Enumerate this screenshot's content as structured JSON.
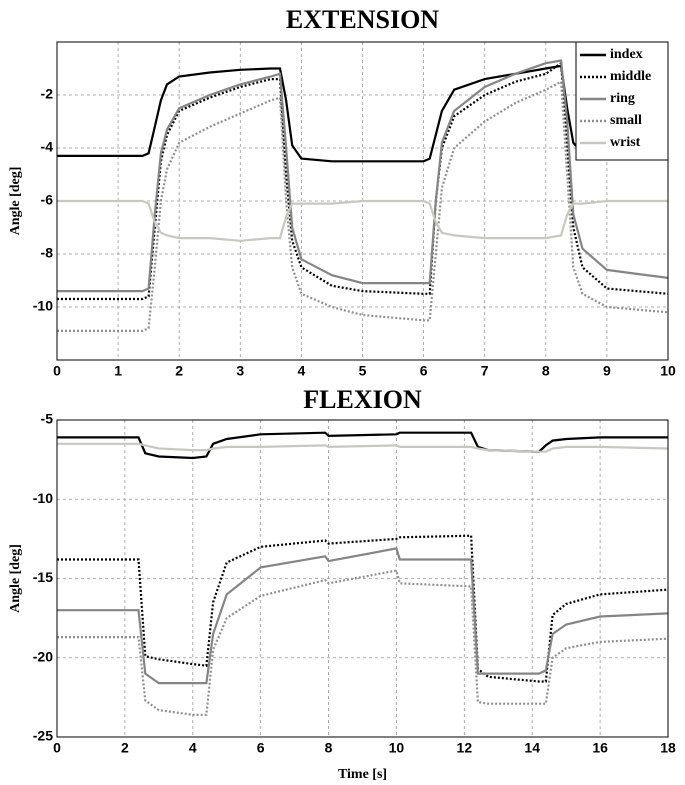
{
  "chart_data": [
    {
      "type": "line",
      "title": "EXTENSION",
      "ylabel": "Angle [deg]",
      "x": [
        0,
        1.4,
        1.5,
        1.6,
        1.7,
        1.8,
        2,
        2.5,
        3,
        3.5,
        3.65,
        3.75,
        3.85,
        4,
        4.5,
        5,
        6,
        6.1,
        6.2,
        6.3,
        6.5,
        7,
        7.5,
        8,
        8.25,
        8.35,
        8.45,
        8.6,
        9,
        10
      ],
      "series": [
        {
          "name": "index",
          "color": "#000000",
          "dash": "solid",
          "values": [
            -4.3,
            -4.3,
            -4.2,
            -3.2,
            -2.2,
            -1.6,
            -1.3,
            -1.15,
            -1.05,
            -1.0,
            -1.0,
            -2.2,
            -3.9,
            -4.4,
            -4.5,
            -4.5,
            -4.5,
            -4.4,
            -3.5,
            -2.6,
            -1.8,
            -1.4,
            -1.2,
            -1.0,
            -0.9,
            -2.5,
            -3.8,
            -4.2,
            -4.2,
            -4.2
          ]
        },
        {
          "name": "middle",
          "color": "#000000",
          "dash": "dotted",
          "values": [
            -9.7,
            -9.7,
            -9.6,
            -7,
            -4.5,
            -3.5,
            -2.6,
            -2.1,
            -1.7,
            -1.4,
            -1.4,
            -5,
            -7.5,
            -8.5,
            -9.2,
            -9.4,
            -9.5,
            -9.5,
            -6,
            -4,
            -2.8,
            -2.0,
            -1.5,
            -1.2,
            -0.8,
            -4,
            -7,
            -8.5,
            -9.3,
            -9.5
          ]
        },
        {
          "name": "ring",
          "color": "#858585",
          "dash": "solid",
          "values": [
            -9.4,
            -9.4,
            -9.3,
            -6.5,
            -4.2,
            -3.3,
            -2.5,
            -2,
            -1.6,
            -1.3,
            -1.2,
            -4,
            -7,
            -8.2,
            -8.8,
            -9.1,
            -9.1,
            -9.1,
            -6,
            -3.8,
            -2.6,
            -1.7,
            -1.2,
            -0.8,
            -0.7,
            -3,
            -6.5,
            -7.8,
            -8.6,
            -8.9
          ]
        },
        {
          "name": "small",
          "color": "#8f8f8f",
          "dash": "dotted",
          "values": [
            -10.9,
            -10.9,
            -10.8,
            -8.5,
            -6,
            -4.8,
            -3.8,
            -3.2,
            -2.7,
            -2.2,
            -2.1,
            -6,
            -8.5,
            -9.5,
            -10,
            -10.3,
            -10.5,
            -10.5,
            -8,
            -5.5,
            -4,
            -3,
            -2.3,
            -1.8,
            -1.5,
            -5,
            -8.5,
            -9.5,
            -10,
            -10.2
          ]
        },
        {
          "name": "wrist",
          "color": "#c8c8c0",
          "dash": "solid",
          "values": [
            -6,
            -6,
            -6.1,
            -6.8,
            -7.2,
            -7.3,
            -7.4,
            -7.4,
            -7.5,
            -7.4,
            -7.4,
            -6.6,
            -6.1,
            -6.1,
            -6.1,
            -6,
            -6,
            -6.1,
            -6.8,
            -7.2,
            -7.3,
            -7.4,
            -7.4,
            -7.4,
            -7.3,
            -6.5,
            -6.1,
            -6.1,
            -6,
            -6
          ]
        }
      ],
      "xlim": [
        0,
        10
      ],
      "xticks": [
        0,
        1,
        2,
        3,
        4,
        5,
        6,
        7,
        8,
        9,
        10
      ],
      "ylim": [
        -12,
        0
      ],
      "yticks": [
        -10,
        -8,
        -6,
        -4,
        -2
      ],
      "grid": true,
      "legend": "upper right"
    },
    {
      "type": "line",
      "title": "FLEXION",
      "ylabel": "Angle [deg]",
      "xlabel": "Time [s]",
      "x": [
        0,
        2.4,
        2.6,
        3,
        4,
        4.4,
        4.6,
        5,
        6,
        7.9,
        8,
        10,
        10.1,
        12.2,
        12.4,
        12.7,
        14.2,
        14.4,
        14.6,
        15,
        16,
        18
      ],
      "series": [
        {
          "name": "index",
          "color": "#000000",
          "dash": "solid",
          "values": [
            -6.1,
            -6.1,
            -7.1,
            -7.3,
            -7.4,
            -7.3,
            -6.5,
            -6.2,
            -5.9,
            -5.8,
            -6,
            -5.9,
            -5.8,
            -5.8,
            -6.7,
            -6.9,
            -7,
            -6.6,
            -6.3,
            -6.2,
            -6.1,
            -6.1
          ]
        },
        {
          "name": "middle",
          "color": "#000000",
          "dash": "dotted",
          "values": [
            -13.8,
            -13.8,
            -19.9,
            -20.1,
            -20.4,
            -20.5,
            -16.5,
            -14,
            -13,
            -12.6,
            -12.8,
            -12.5,
            -12.4,
            -12.3,
            -20.7,
            -21.2,
            -21.5,
            -21.5,
            -17.3,
            -16.6,
            -16,
            -15.7
          ]
        },
        {
          "name": "ring",
          "color": "#858585",
          "dash": "solid",
          "values": [
            -17,
            -17,
            -21,
            -21.6,
            -21.6,
            -21.6,
            -18.5,
            -16,
            -14.3,
            -13.6,
            -13.9,
            -13.1,
            -13.8,
            -13.8,
            -21,
            -21,
            -21,
            -20.8,
            -18.5,
            -17.9,
            -17.4,
            -17.2
          ]
        },
        {
          "name": "small",
          "color": "#8f8f8f",
          "dash": "dotted",
          "values": [
            -18.7,
            -18.7,
            -22.7,
            -23.3,
            -23.6,
            -23.6,
            -19.5,
            -17.5,
            -16.1,
            -15.1,
            -15.3,
            -14.5,
            -15.3,
            -15.5,
            -22.8,
            -22.9,
            -22.9,
            -22.9,
            -20,
            -19.4,
            -19,
            -18.8
          ]
        },
        {
          "name": "wrist",
          "color": "#c8c8c0",
          "dash": "solid",
          "values": [
            -6.5,
            -6.5,
            -6.6,
            -6.8,
            -6.9,
            -6.9,
            -6.8,
            -6.7,
            -6.7,
            -6.6,
            -6.7,
            -6.6,
            -6.7,
            -6.7,
            -6.8,
            -6.9,
            -7,
            -7,
            -6.8,
            -6.7,
            -6.7,
            -6.8
          ]
        }
      ],
      "xlim": [
        0,
        18
      ],
      "xticks": [
        0,
        2,
        4,
        6,
        8,
        10,
        12,
        14,
        16,
        18
      ],
      "ylim": [
        -25,
        -5
      ],
      "yticks": [
        -25,
        -20,
        -15,
        -10,
        -5
      ],
      "grid": true,
      "legend": false
    }
  ]
}
